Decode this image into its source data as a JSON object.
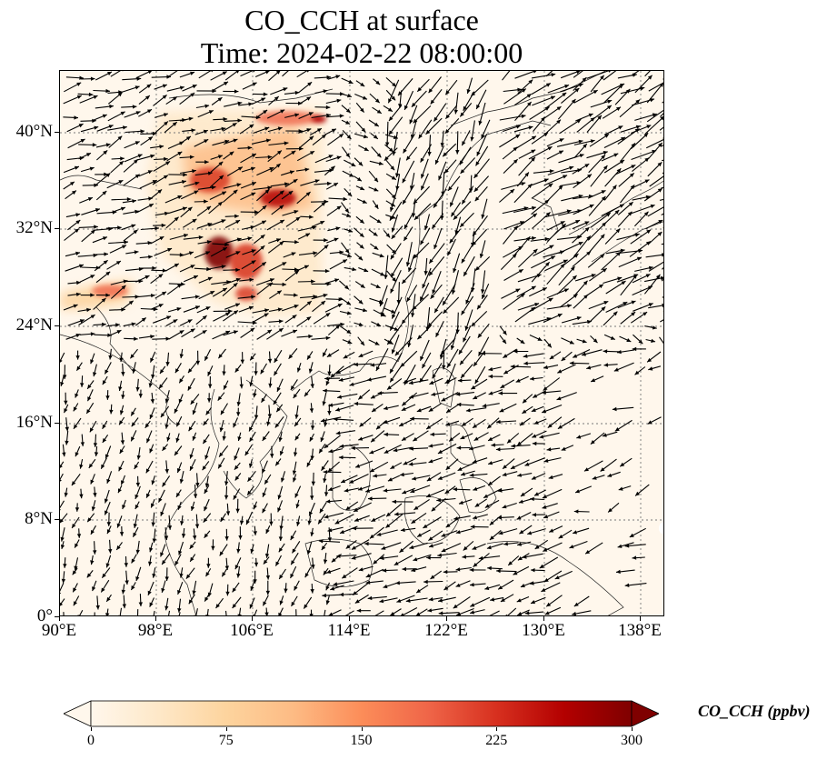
{
  "title_line1": "CO_CCH at surface",
  "title_line2": "Time: 2024-02-22 08:00:00",
  "lat_labels": [
    "40°N",
    "32°N",
    "24°N",
    "16°N",
    "8°N",
    "0°"
  ],
  "lon_labels": [
    "90°E",
    "98°E",
    "106°E",
    "114°E",
    "122°E",
    "130°E",
    "138°E"
  ],
  "colorbar": {
    "label": "CO_CCH (ppbv)",
    "ticks": [
      "0",
      "75",
      "150",
      "225",
      "300"
    ],
    "min": 0,
    "max": 300,
    "colors": [
      "#fff7ec",
      "#fee8c8",
      "#fdd49e",
      "#fdbb84",
      "#fc8d59",
      "#ef6548",
      "#d7301f",
      "#b30000",
      "#7f0000"
    ]
  },
  "map": {
    "extent_lon": [
      90,
      140
    ],
    "extent_lat": [
      0,
      45
    ],
    "gridlines": "dotted",
    "vectors": "wind"
  }
}
